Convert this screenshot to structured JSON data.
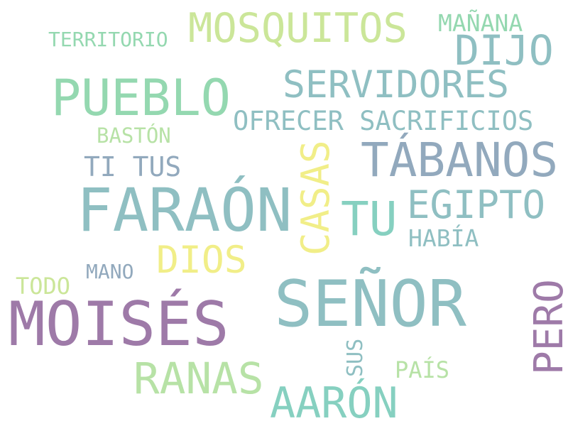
{
  "colors": {
    "background": "#ffffff",
    "teal": "#8fbfc2",
    "steel_blue": "#92a9bd",
    "purple": "#9e7aa8",
    "mint": "#94d8b0",
    "light_green": "#b7e2a6",
    "yellow_green": "#cbe699",
    "pale_yellow": "#f1ee88",
    "aqua": "#86d0c0"
  },
  "words": [
    {
      "text": "SEÑOR",
      "color": "teal"
    },
    {
      "text": "MOISÉS",
      "color": "purple"
    },
    {
      "text": "FARAÓN",
      "color": "teal"
    },
    {
      "text": "PUEBLO",
      "color": "mint"
    },
    {
      "text": "TÁBANOS",
      "color": "steel_blue"
    },
    {
      "text": "MOSQUITOS",
      "color": "yellow_green"
    },
    {
      "text": "SERVIDORES",
      "color": "teal"
    },
    {
      "text": "EGIPTO",
      "color": "teal"
    },
    {
      "text": "RANAS",
      "color": "light_green"
    },
    {
      "text": "AARÓN",
      "color": "aqua"
    },
    {
      "text": "DIJO",
      "color": "teal"
    },
    {
      "text": "TU",
      "color": "aqua"
    },
    {
      "text": "DIOS",
      "color": "pale_yellow"
    },
    {
      "text": "CASAS",
      "color": "pale_yellow"
    },
    {
      "text": "PERO",
      "color": "purple"
    },
    {
      "text": "OFRECER SACRIFICIOS",
      "color": "teal"
    },
    {
      "text": "TI TUS",
      "color": "steel_blue"
    },
    {
      "text": "HABÍA",
      "color": "teal"
    },
    {
      "text": "TERRITORIO",
      "color": "mint"
    },
    {
      "text": "MAÑANA",
      "color": "mint"
    },
    {
      "text": "BASTÓN",
      "color": "light_green"
    },
    {
      "text": "MANO",
      "color": "steel_blue"
    },
    {
      "text": "TODO",
      "color": "yellow_green"
    },
    {
      "text": "PAÍS",
      "color": "light_green"
    },
    {
      "text": "SUS",
      "color": "teal"
    }
  ]
}
